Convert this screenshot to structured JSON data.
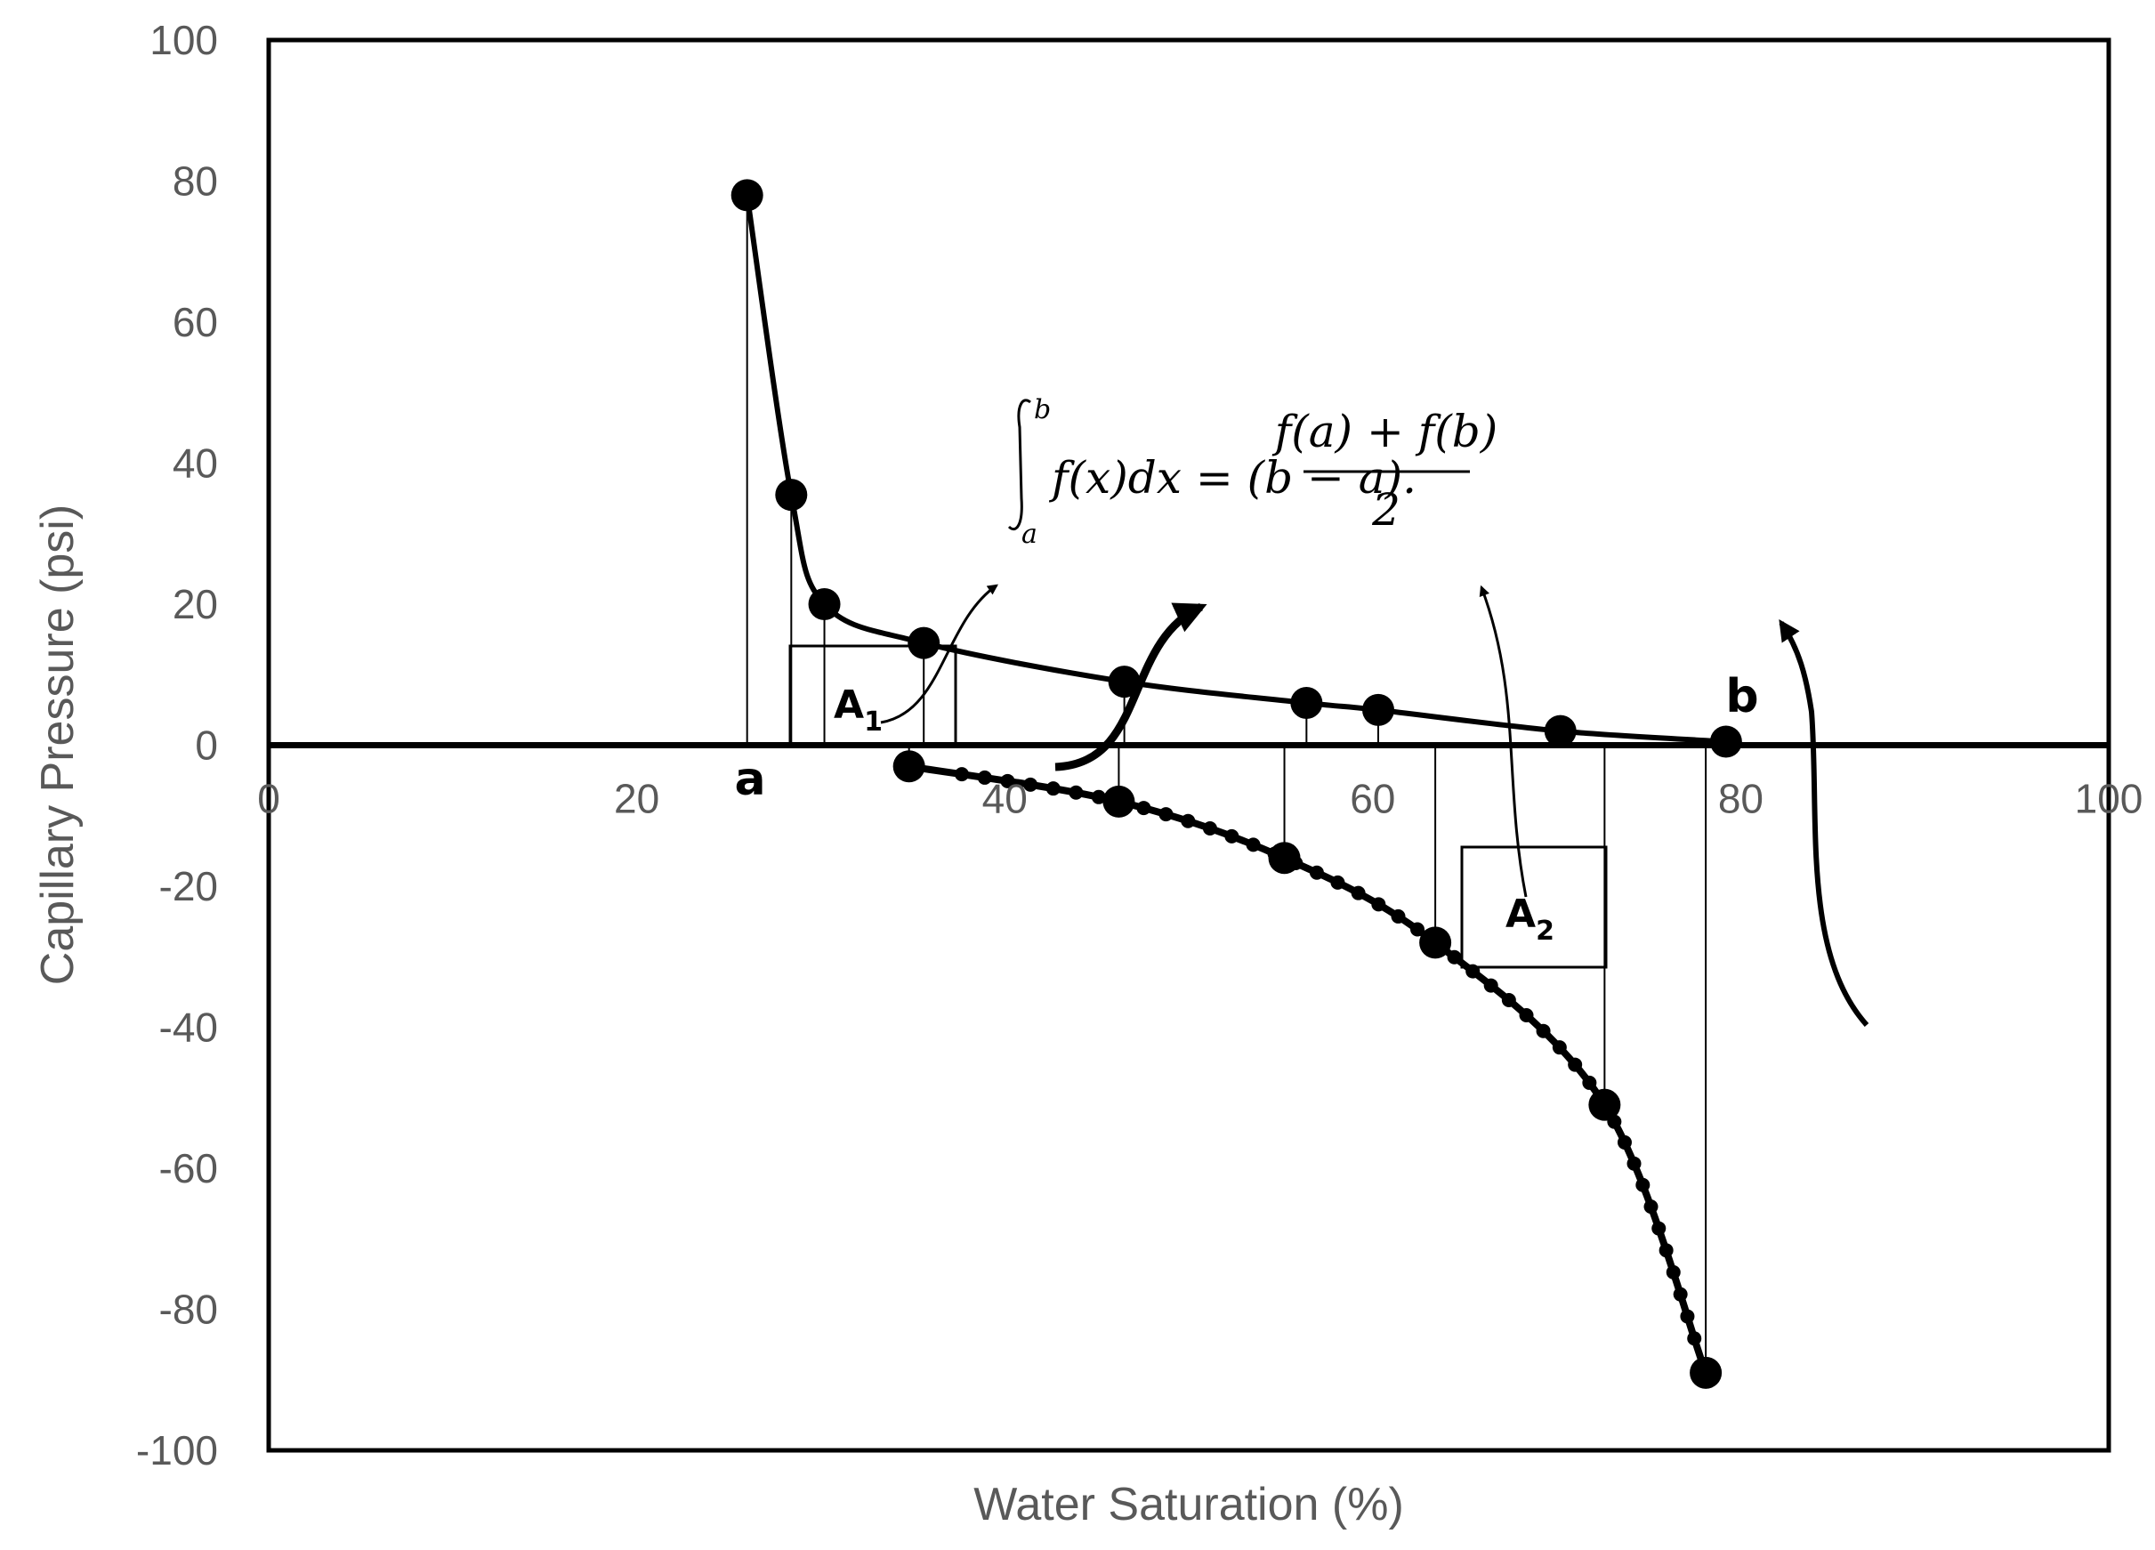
{
  "chart_data": {
    "type": "scatter",
    "title": "",
    "xlabel": "Water Saturation (%)",
    "ylabel": "Capillary Pressure (psi)",
    "xlim": [
      0,
      100
    ],
    "ylim": [
      -100,
      100
    ],
    "xticks": [
      "0",
      "20",
      "40",
      "60",
      "80",
      "100"
    ],
    "yticks": [
      "100",
      "80",
      "60",
      "40",
      "20",
      "0",
      "-20",
      "-40",
      "-60",
      "-80",
      "-100"
    ],
    "grid": false,
    "legend": "none",
    "series": [
      {
        "x": [
          26,
          28.4,
          30.2,
          35.6,
          46.5,
          56.4,
          60.3,
          70.2,
          79.2
        ],
        "y": [
          78,
          35.5,
          20,
          14.5,
          9,
          6,
          5,
          2,
          0.5
        ]
      },
      {
        "x": [
          34.8,
          46.2,
          55.2,
          63.4,
          72.6,
          78.1
        ],
        "y": [
          -3,
          -8,
          -16,
          -28,
          -51,
          -89
        ]
      }
    ],
    "annotations": {
      "point_a": "a",
      "point_b": "b",
      "area_1_main": "A",
      "area_1_sub": "1",
      "area_2_main": "A",
      "area_2_sub": "2"
    },
    "formula": {
      "upper_limit": "b",
      "lower_limit": "a",
      "integrand": "f(x)dx = (b − a).",
      "numerator": "f(a) + f(b)",
      "denominator": "2"
    },
    "colors": {
      "series": "#000000",
      "axis_text": "#595959",
      "frame": "#000000"
    }
  }
}
